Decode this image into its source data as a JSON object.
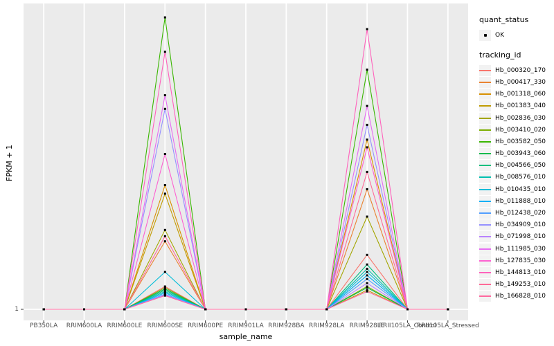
{
  "axes": {
    "x_title": "sample_name",
    "y_title": "FPKM + 1",
    "y_tick_label": "1"
  },
  "legend": {
    "quant_status_title": "quant_status",
    "quant_status_value": "OK",
    "tracking_id_title": "tracking_id"
  },
  "chart_data": {
    "type": "line",
    "title": "",
    "xlabel": "sample_name",
    "ylabel": "FPKM + 1",
    "x_categories": [
      "PB350LA",
      "RRIM600LA",
      "RRIM600LE",
      "RRIM600SE",
      "RRIM600PE",
      "RRIM901LA",
      "RRIM928BA",
      "RRIM928LA",
      "RRIM928LE",
      "RRII105LA_Control",
      "RRII105LA_Stressed"
    ],
    "y_scale": "log10",
    "y_ticks": [
      1
    ],
    "ylim": [
      1,
      1800
    ],
    "grid": true,
    "legend_position": "right",
    "panel_bg": "#EBEBEB",
    "grid_color": "#FFFFFF",
    "point_color": "#000000",
    "quant_status": "OK",
    "series": [
      {
        "name": "Hb_000320_170",
        "color": "#F8766D",
        "values": [
          1,
          1,
          1,
          1.75,
          1,
          1,
          1,
          1,
          3.8,
          1,
          1
        ]
      },
      {
        "name": "Hb_000417_330",
        "color": "#EA8331",
        "values": [
          1,
          1,
          1,
          5.3,
          1,
          1,
          1,
          1,
          19,
          1,
          1
        ]
      },
      {
        "name": "Hb_001318_060",
        "color": "#D89000",
        "values": [
          1,
          1,
          1,
          21,
          1,
          1,
          1,
          1,
          64,
          1,
          1
        ]
      },
      {
        "name": "Hb_001383_040",
        "color": "#C09B00",
        "values": [
          1,
          1,
          1,
          17,
          1,
          1,
          1,
          1,
          1.6,
          1,
          1
        ]
      },
      {
        "name": "Hb_002836_030",
        "color": "#A3A500",
        "values": [
          1,
          1,
          1,
          7,
          1,
          1,
          1,
          1,
          9.7,
          1,
          1
        ]
      },
      {
        "name": "Hb_003410_020",
        "color": "#7CAE00",
        "values": [
          1,
          1,
          1,
          1.7,
          1,
          1,
          1,
          1,
          1.75,
          1,
          1
        ]
      },
      {
        "name": "Hb_003582_050",
        "color": "#39B600",
        "values": [
          1,
          1,
          1,
          1280,
          1,
          1,
          1,
          1,
          355,
          1,
          1
        ]
      },
      {
        "name": "Hb_003943_060",
        "color": "#00BB4E",
        "values": [
          1,
          1,
          1,
          1.65,
          1,
          1,
          1,
          1,
          1.7,
          1,
          1
        ]
      },
      {
        "name": "Hb_004566_050",
        "color": "#00BF7D",
        "values": [
          1,
          1,
          1,
          1.6,
          1,
          1,
          1,
          1,
          3.0,
          1,
          1
        ]
      },
      {
        "name": "Hb_008576_010",
        "color": "#00C0AF",
        "values": [
          1,
          1,
          1,
          1.55,
          1,
          1,
          1,
          1,
          2.7,
          1,
          1
        ]
      },
      {
        "name": "Hb_010435_010",
        "color": "#00BCD8",
        "values": [
          1,
          1,
          1,
          2.5,
          1,
          1,
          1,
          1,
          2.5,
          1,
          1
        ]
      },
      {
        "name": "Hb_011888_010",
        "color": "#00B0F6",
        "values": [
          1,
          1,
          1,
          1.5,
          1,
          1,
          1,
          1,
          2.3,
          1,
          1
        ]
      },
      {
        "name": "Hb_012438_020",
        "color": "#529EFF",
        "values": [
          1,
          1,
          1,
          1.45,
          1,
          1,
          1,
          1,
          2.1,
          1,
          1
        ]
      },
      {
        "name": "Hb_034909_010",
        "color": "#9590FF",
        "values": [
          1,
          1,
          1,
          136,
          1,
          1,
          1,
          1,
          92,
          1,
          1
        ]
      },
      {
        "name": "Hb_071998_010",
        "color": "#B983FF",
        "values": [
          1,
          1,
          1,
          1.42,
          1,
          1,
          1,
          1,
          1.9,
          1,
          1
        ]
      },
      {
        "name": "Hb_111985_030",
        "color": "#E76BF3",
        "values": [
          1,
          1,
          1,
          190,
          1,
          1,
          1,
          1,
          146,
          1,
          1
        ]
      },
      {
        "name": "Hb_127835_030",
        "color": "#FD61D1",
        "values": [
          1,
          1,
          1,
          45,
          1,
          1,
          1,
          1,
          53,
          1,
          1
        ]
      },
      {
        "name": "Hb_144813_010",
        "color": "#FF62BC",
        "values": [
          1,
          1,
          1,
          550,
          1,
          1,
          1,
          1,
          960,
          1,
          1
        ]
      },
      {
        "name": "Hb_149253_010",
        "color": "#FF6A98",
        "values": [
          1,
          1,
          1,
          6,
          1,
          1,
          1,
          1,
          29,
          1,
          1
        ]
      },
      {
        "name": "Hb_166828_010",
        "color": "#FF689F",
        "values": [
          1,
          1,
          1,
          1.4,
          1,
          1,
          1,
          1,
          1.55,
          1,
          1
        ]
      }
    ]
  }
}
